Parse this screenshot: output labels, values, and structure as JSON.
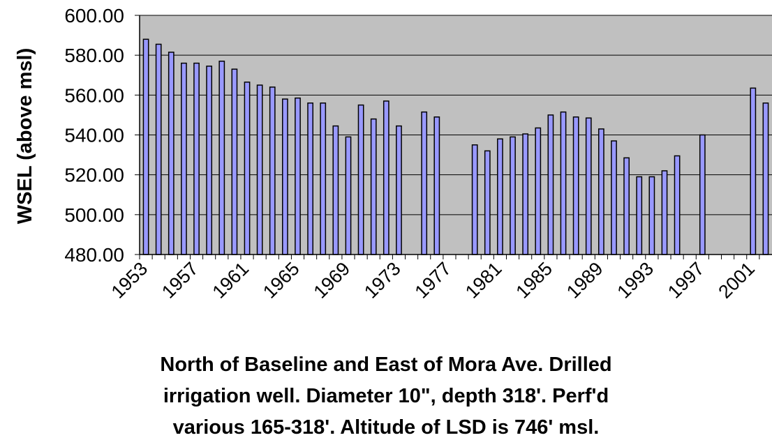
{
  "chart_data": {
    "type": "bar",
    "ylabel": "WSEL (above msl)",
    "caption": [
      "North of Baseline and East of Mora Ave. Drilled",
      "irrigation well. Diameter 10\", depth 318'. Perf'd",
      "various 165-318'. Altitude of LSD is 746' msl."
    ],
    "categories": [
      "1953",
      null,
      null,
      null,
      "1957",
      null,
      null,
      null,
      "1961",
      null,
      null,
      null,
      "1965",
      null,
      null,
      null,
      "1969",
      null,
      null,
      null,
      "1973",
      null,
      null,
      null,
      "1977",
      null,
      null,
      null,
      "1981",
      null,
      null,
      null,
      "1985",
      null,
      null,
      null,
      "1989",
      null,
      null,
      null,
      "1993",
      null,
      null,
      null,
      "1997",
      null,
      null,
      null,
      "2001",
      null
    ],
    "values": [
      588,
      585.5,
      581.5,
      576,
      576,
      574.5,
      577,
      573,
      566.5,
      565,
      564,
      558,
      558.5,
      556,
      556,
      544.5,
      539,
      555,
      548,
      557,
      544.5,
      null,
      551.5,
      549,
      null,
      null,
      535,
      532,
      538,
      539,
      540.5,
      543.5,
      550,
      551.5,
      549,
      548.5,
      543,
      537,
      528.5,
      519,
      519,
      522,
      529.5,
      null,
      540,
      null,
      null,
      null,
      563.5,
      556
    ],
    "color": "#9999ff",
    "background": "#c0c0c0",
    "ylim": [
      480,
      600
    ],
    "yticks": [
      {
        "value": 480,
        "label": "480.00"
      },
      {
        "value": 500,
        "label": "500.00"
      },
      {
        "value": 520,
        "label": "520.00"
      },
      {
        "value": 540,
        "label": "540.00"
      },
      {
        "value": 560,
        "label": "560.00"
      },
      {
        "value": 580,
        "label": "580.00"
      },
      {
        "value": 600,
        "label": "600.00"
      }
    ],
    "grid": true
  }
}
